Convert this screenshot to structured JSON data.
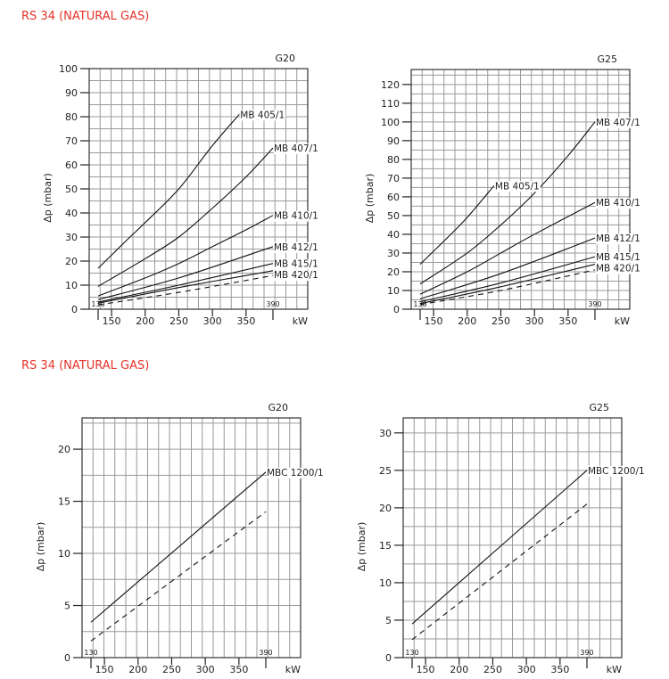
{
  "titles": [
    "RS 34 (NATURAL GAS)",
    "RS 34 (NATURAL GAS)"
  ],
  "chart_data": [
    {
      "type": "line",
      "gas": "G20",
      "ylabel": "Δp (mbar)",
      "xlabel": "kW",
      "ylim": [
        0,
        100
      ],
      "yticks": [
        0,
        10,
        20,
        30,
        40,
        50,
        60,
        70,
        80,
        90,
        100
      ],
      "xticks": [
        150,
        200,
        250,
        300,
        350
      ],
      "range_labels": [
        "130",
        "390"
      ],
      "range": [
        130,
        390
      ],
      "grid": true,
      "series": [
        {
          "name": "MB 405/1",
          "style": "solid",
          "x": [
            130,
            170,
            200,
            250,
            300,
            340
          ],
          "y": [
            17,
            28,
            36,
            50,
            68,
            81
          ]
        },
        {
          "name": "MB 407/1",
          "style": "solid",
          "x": [
            130,
            200,
            250,
            300,
            350,
            390
          ],
          "y": [
            9.5,
            21,
            30,
            42,
            55,
            67
          ]
        },
        {
          "name": "MB 410/1",
          "style": "solid",
          "x": [
            130,
            200,
            250,
            300,
            350,
            390
          ],
          "y": [
            5.5,
            13,
            19,
            26,
            33,
            39
          ]
        },
        {
          "name": "MB 412/1",
          "style": "solid",
          "x": [
            130,
            250,
            390
          ],
          "y": [
            4,
            13,
            26
          ]
        },
        {
          "name": "MB 415/1",
          "style": "solid",
          "x": [
            130,
            250,
            390
          ],
          "y": [
            3,
            10,
            19
          ]
        },
        {
          "name": "MB 420/1",
          "style": "solid",
          "x": [
            130,
            250,
            390
          ],
          "y": [
            2.5,
            9,
            16
          ]
        },
        {
          "name": "",
          "style": "dashed",
          "x": [
            130,
            250,
            390
          ],
          "y": [
            1.8,
            7,
            14
          ]
        }
      ]
    },
    {
      "type": "line",
      "gas": "G25",
      "ylabel": "Δp (mbar)",
      "xlabel": "kW",
      "ylim": [
        0,
        128
      ],
      "yticks": [
        0,
        10,
        20,
        30,
        40,
        50,
        60,
        70,
        80,
        90,
        100,
        110,
        120
      ],
      "xticks": [
        150,
        200,
        250,
        300,
        350
      ],
      "range_labels": [
        "130",
        "390"
      ],
      "range": [
        130,
        390
      ],
      "grid": true,
      "series": [
        {
          "name": "MB 405/1",
          "style": "solid",
          "x": [
            130,
            170,
            200,
            240
          ],
          "y": [
            24,
            38,
            49,
            66
          ]
        },
        {
          "name": "MB 407/1",
          "style": "solid",
          "x": [
            130,
            200,
            250,
            300,
            350,
            390
          ],
          "y": [
            13.5,
            30,
            45,
            62,
            82,
            100
          ]
        },
        {
          "name": "MB 410/1",
          "style": "solid",
          "x": [
            130,
            200,
            250,
            300,
            390
          ],
          "y": [
            8,
            20,
            30,
            40,
            57
          ]
        },
        {
          "name": "MB 412/1",
          "style": "solid",
          "x": [
            130,
            250,
            390
          ],
          "y": [
            5.5,
            19,
            38
          ]
        },
        {
          "name": "MB 415/1",
          "style": "solid",
          "x": [
            130,
            250,
            390
          ],
          "y": [
            4,
            14,
            28
          ]
        },
        {
          "name": "MB 420/1",
          "style": "solid",
          "x": [
            130,
            250,
            390
          ],
          "y": [
            3,
            12,
            24
          ]
        },
        {
          "name": "",
          "style": "dashed",
          "x": [
            130,
            250,
            390
          ],
          "y": [
            2.5,
            10,
            21
          ]
        }
      ]
    },
    {
      "type": "line",
      "gas": "G20",
      "ylabel": "Δp (mbar)",
      "xlabel": "kW",
      "ylim": [
        0,
        23
      ],
      "yticks": [
        0,
        5,
        10,
        15,
        20
      ],
      "xticks": [
        150,
        200,
        250,
        300,
        350
      ],
      "range_labels": [
        "130",
        "390"
      ],
      "range": [
        130,
        390
      ],
      "grid": true,
      "series": [
        {
          "name": "MBC 1200/1",
          "style": "solid",
          "x": [
            130,
            390
          ],
          "y": [
            3.4,
            17.8
          ]
        },
        {
          "name": "",
          "style": "dashed",
          "x": [
            130,
            390
          ],
          "y": [
            1.6,
            14
          ]
        }
      ]
    },
    {
      "type": "line",
      "gas": "G25",
      "ylabel": "Δp (mbar)",
      "xlabel": "kW",
      "ylim": [
        0,
        32
      ],
      "yticks": [
        0,
        5,
        10,
        15,
        20,
        25,
        30
      ],
      "xticks": [
        150,
        200,
        250,
        300,
        350
      ],
      "range_labels": [
        "130",
        "390"
      ],
      "range": [
        130,
        390
      ],
      "grid": true,
      "series": [
        {
          "name": "MBC 1200/1",
          "style": "solid",
          "x": [
            130,
            390
          ],
          "y": [
            4.5,
            25
          ]
        },
        {
          "name": "",
          "style": "dashed",
          "x": [
            130,
            390
          ],
          "y": [
            2.4,
            20.5
          ]
        }
      ]
    }
  ]
}
